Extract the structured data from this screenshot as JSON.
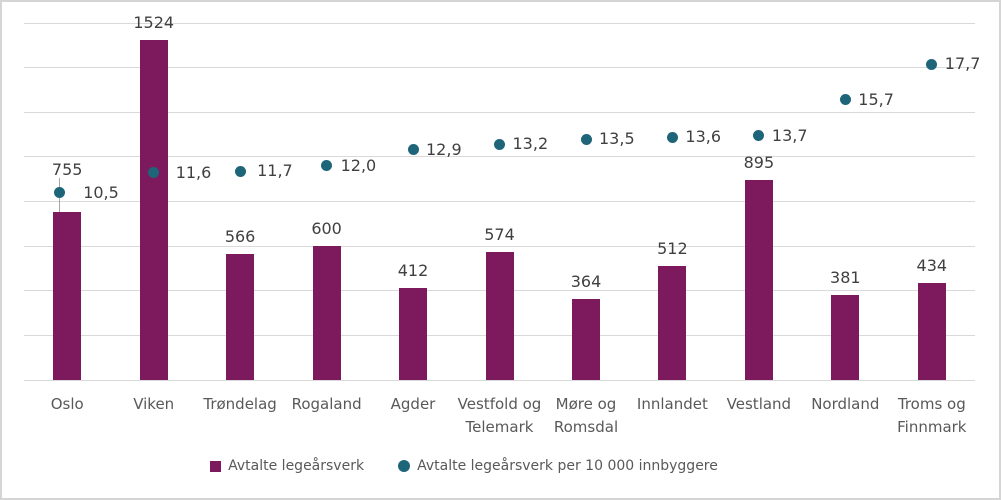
{
  "chart_data": {
    "type": "bar",
    "subtype": "combo-bar-and-scatter",
    "title": "",
    "categories": [
      "Oslo",
      "Viken",
      "Trøndelag",
      "Rogaland",
      "Agder",
      "Vestfold og Telemark",
      "Møre og Romsdal",
      "Innlandet",
      "Vestland",
      "Nordland",
      "Troms og Finnmark"
    ],
    "category_label_lines": [
      [
        "Oslo"
      ],
      [
        "Viken"
      ],
      [
        "Trøndelag"
      ],
      [
        "Rogaland"
      ],
      [
        "Agder"
      ],
      [
        "Vestfold og",
        "Telemark"
      ],
      [
        "Møre og",
        "Romsdal"
      ],
      [
        "Innlandet"
      ],
      [
        "Vestland"
      ],
      [
        "Nordland"
      ],
      [
        "Troms og",
        "Finnmark"
      ]
    ],
    "series": [
      {
        "name": "Avtalte legeårsverk",
        "type": "bar",
        "axis": "left",
        "color": "#7D1A5D",
        "values": [
          755,
          1524,
          566,
          600,
          412,
          574,
          364,
          512,
          895,
          381,
          434
        ],
        "data_labels": [
          "755",
          "1524",
          "566",
          "600",
          "412",
          "574",
          "364",
          "512",
          "895",
          "381",
          "434"
        ],
        "label_dy": [
          -25,
          0,
          0,
          0,
          0,
          0,
          0,
          0,
          0,
          0,
          0
        ],
        "leader_line": [
          true,
          false,
          false,
          false,
          false,
          false,
          false,
          false,
          false,
          false,
          false
        ]
      },
      {
        "name": "Avtalte legeårsverk per 10 000 innbyggere",
        "type": "scatter",
        "axis": "right",
        "color": "#1F657A",
        "values": [
          10.5,
          11.6,
          11.7,
          12.0,
          12.9,
          13.2,
          13.5,
          13.6,
          13.7,
          15.7,
          17.7
        ],
        "data_labels": [
          "10,5",
          "11,6",
          "11,7",
          "12,0",
          "12,9",
          "13,2",
          "13,5",
          "13,6",
          "13,7",
          "15,7",
          "17,7"
        ],
        "dot_dx": [
          -8,
          0,
          0,
          0,
          0,
          0,
          0,
          0,
          0,
          0,
          0
        ],
        "label_dx": [
          11,
          9,
          4,
          1,
          0,
          0,
          0,
          0,
          0,
          0,
          0
        ]
      }
    ],
    "left_axis": {
      "min": 0,
      "max": 1600,
      "gridline_step": 200,
      "labels_visible": false
    },
    "right_axis": {
      "min": 0,
      "max": 20,
      "labels_visible": false
    },
    "grid": true,
    "legend_position": "bottom"
  },
  "colors": {
    "bar": "#7D1A5D",
    "dot": "#1F657A",
    "gridline": "#D9D9D9",
    "value_label_text": "#404040",
    "axis_label_text": "#595959",
    "leader_line": "#A6A6A6",
    "frame_border": "#D5D5D5",
    "background": "#FFFFFF"
  }
}
